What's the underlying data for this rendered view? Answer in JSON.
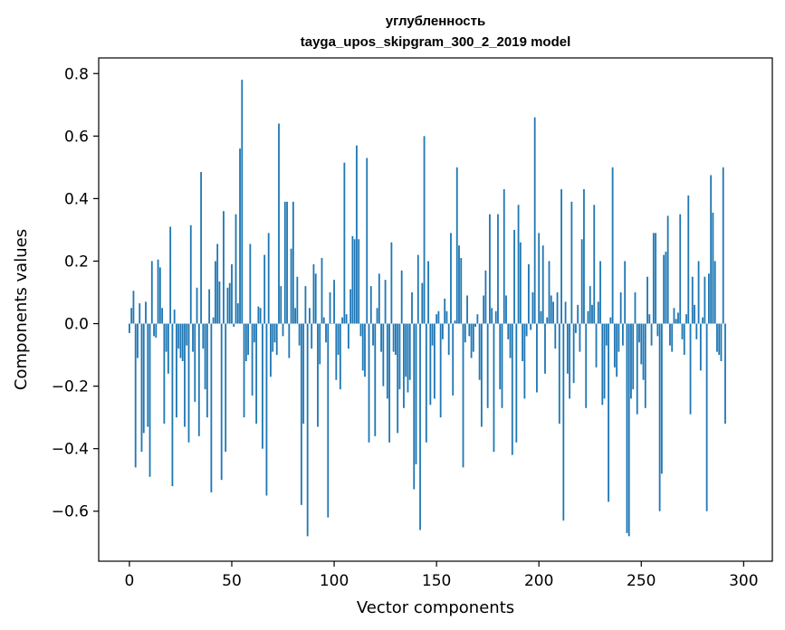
{
  "chart_data": {
    "type": "bar",
    "title_lines": [
      "углубленность",
      "tayga_upos_skipgram_300_2_2019 model"
    ],
    "xlabel": "Vector components",
    "ylabel": "Components values",
    "xlim": [
      -15,
      314
    ],
    "ylim": [
      -0.76,
      0.85
    ],
    "xticks": [
      0,
      50,
      100,
      150,
      200,
      250,
      300
    ],
    "yticks": [
      -0.6,
      -0.4,
      -0.2,
      0.0,
      0.2,
      0.4,
      0.6,
      0.8
    ],
    "ytick_labels": [
      "−0.6",
      "−0.4",
      "−0.2",
      "0.0",
      "0.2",
      "0.4",
      "0.6",
      "0.8"
    ],
    "bar_color": "#1f77b4",
    "grid": false,
    "values": [
      -0.03,
      0.05,
      0.105,
      -0.46,
      -0.11,
      0.065,
      -0.41,
      -0.35,
      0.07,
      -0.33,
      -0.49,
      0.2,
      -0.04,
      -0.045,
      0.205,
      0.18,
      0.05,
      -0.32,
      -0.09,
      -0.16,
      0.31,
      -0.52,
      0.045,
      -0.3,
      -0.08,
      -0.11,
      -0.12,
      -0.33,
      -0.07,
      -0.38,
      0.315,
      -0.09,
      -0.25,
      0.115,
      -0.36,
      0.485,
      -0.08,
      -0.21,
      -0.3,
      0.11,
      -0.54,
      0.02,
      0.2,
      0.255,
      0.135,
      -0.5,
      0.36,
      -0.41,
      0.115,
      0.13,
      0.19,
      -0.01,
      0.35,
      0.065,
      0.56,
      0.78,
      -0.3,
      -0.12,
      -0.1,
      0.255,
      -0.23,
      -0.06,
      -0.32,
      0.055,
      0.05,
      -0.4,
      0.22,
      -0.55,
      0.29,
      -0.17,
      -0.09,
      -0.06,
      -0.1,
      0.64,
      0.12,
      -0.04,
      0.39,
      0.39,
      -0.11,
      0.24,
      0.39,
      0.05,
      0.15,
      -0.07,
      -0.58,
      -0.32,
      0.12,
      -0.68,
      0.05,
      -0.08,
      0.19,
      0.16,
      -0.33,
      -0.13,
      0.21,
      0.02,
      -0.06,
      -0.62,
      0.1,
      0.0,
      0.14,
      -0.18,
      -0.1,
      -0.21,
      0.02,
      0.515,
      0.03,
      -0.08,
      0.11,
      0.28,
      0.27,
      0.57,
      0.27,
      -0.04,
      -0.15,
      -0.17,
      0.53,
      -0.38,
      0.12,
      -0.07,
      -0.36,
      0.05,
      0.16,
      -0.09,
      -0.2,
      0.14,
      -0.24,
      -0.38,
      0.26,
      -0.09,
      -0.1,
      -0.35,
      -0.21,
      0.17,
      -0.27,
      -0.17,
      -0.22,
      -0.18,
      0.1,
      -0.53,
      -0.45,
      0.22,
      -0.66,
      0.13,
      0.6,
      -0.38,
      0.2,
      -0.26,
      -0.07,
      -0.24,
      0.03,
      0.04,
      -0.3,
      -0.05,
      0.08,
      0.04,
      -0.1,
      0.29,
      -0.23,
      0.01,
      0.5,
      0.25,
      0.21,
      -0.46,
      -0.06,
      0.09,
      -0.04,
      -0.11,
      -0.09,
      -0.01,
      0.03,
      -0.18,
      -0.33,
      0.09,
      0.17,
      -0.27,
      0.35,
      0.05,
      -0.41,
      0.04,
      0.35,
      -0.21,
      -0.27,
      0.43,
      0.09,
      -0.05,
      -0.11,
      -0.42,
      0.3,
      -0.38,
      0.38,
      0.26,
      -0.12,
      -0.24,
      -0.04,
      0.19,
      -0.02,
      0.1,
      0.66,
      -0.22,
      0.29,
      0.04,
      0.25,
      -0.16,
      0.02,
      0.2,
      0.09,
      0.07,
      -0.08,
      0.1,
      -0.32,
      0.43,
      -0.63,
      0.07,
      -0.16,
      -0.24,
      0.39,
      -0.19,
      -0.03,
      0.06,
      -0.09,
      0.27,
      0.43,
      -0.27,
      0.04,
      0.12,
      0.06,
      0.38,
      -0.14,
      0.07,
      0.2,
      -0.26,
      -0.24,
      -0.07,
      -0.57,
      0.02,
      0.5,
      -0.14,
      -0.17,
      -0.09,
      0.1,
      -0.07,
      0.2,
      -0.67,
      -0.68,
      -0.24,
      -0.21,
      0.1,
      -0.29,
      -0.06,
      -0.13,
      -0.18,
      -0.27,
      0.15,
      0.03,
      -0.07,
      0.29,
      0.29,
      -0.04,
      -0.6,
      -0.48,
      0.22,
      0.23,
      0.345,
      -0.07,
      -0.09,
      0.05,
      0.015,
      0.035,
      0.35,
      -0.05,
      -0.1,
      0.03,
      0.41,
      -0.29,
      0.15,
      0.06,
      -0.05,
      0.2,
      -0.15,
      0.02,
      0.15,
      -0.6,
      0.16,
      0.475,
      0.355,
      0.2,
      -0.09,
      -0.1,
      -0.12,
      0.5,
      -0.32
    ]
  }
}
